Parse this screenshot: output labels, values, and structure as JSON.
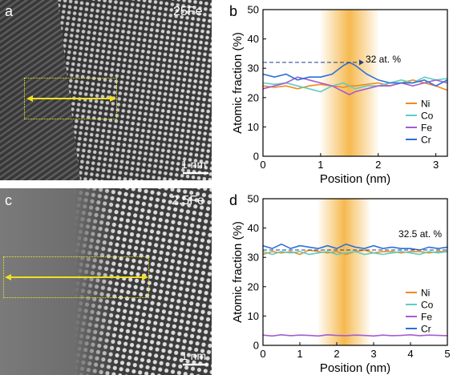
{
  "panels": {
    "a": {
      "letter": "a",
      "sample": "25Fe",
      "scalebar": "1 nm"
    },
    "b": {
      "letter": "b"
    },
    "c": {
      "letter": "c",
      "sample": "2.5Fe",
      "scalebar": "1 nm"
    },
    "d": {
      "letter": "d"
    }
  },
  "colors": {
    "Ni": "#f28a1e",
    "Co": "#5ccfc0",
    "Fe": "#a45ccf",
    "Cr": "#2d6fd6",
    "highlight": "#f5b646",
    "frame": "#e8e82a",
    "arrow": "#f0e020"
  },
  "chart_data": [
    {
      "type": "line",
      "panel": "b",
      "xlabel": "Position (nm)",
      "ylabel": "Atomic fraction (%)",
      "xlim": [
        0,
        3.2
      ],
      "ylim": [
        0,
        50
      ],
      "xticks": [
        0,
        1,
        2,
        3
      ],
      "yticks": [
        0,
        10,
        20,
        30,
        40,
        50
      ],
      "highlight_range": [
        1.0,
        2.0
      ],
      "annotation": "32 at. %",
      "annotation_value": 32,
      "legend": "bottom-right",
      "series": [
        {
          "name": "Ni",
          "x": [
            0,
            0.2,
            0.4,
            0.6,
            0.8,
            1.0,
            1.2,
            1.4,
            1.5,
            1.6,
            1.8,
            2.0,
            2.2,
            2.4,
            2.6,
            2.8,
            3.0,
            3.2
          ],
          "values": [
            24,
            23.5,
            24,
            23,
            24,
            24.5,
            24,
            23.5,
            24,
            24,
            24.5,
            25,
            24,
            25,
            26,
            25,
            24,
            22.5
          ]
        },
        {
          "name": "Co",
          "x": [
            0,
            0.2,
            0.4,
            0.6,
            0.8,
            1.0,
            1.2,
            1.4,
            1.5,
            1.6,
            1.8,
            2.0,
            2.2,
            2.4,
            2.6,
            2.8,
            3.0,
            3.2
          ],
          "values": [
            25,
            24.5,
            25,
            24,
            23,
            22,
            24,
            25,
            24,
            23,
            24,
            24,
            25,
            26,
            25,
            27,
            26,
            26.5
          ]
        },
        {
          "name": "Fe",
          "x": [
            0,
            0.2,
            0.4,
            0.6,
            0.8,
            1.0,
            1.2,
            1.4,
            1.5,
            1.6,
            1.8,
            2.0,
            2.2,
            2.4,
            2.6,
            2.8,
            3.0,
            3.2
          ],
          "values": [
            23,
            24,
            25,
            27,
            26,
            25,
            24,
            22,
            21,
            22,
            23,
            24,
            24,
            25,
            24,
            25,
            26,
            25
          ]
        },
        {
          "name": "Cr",
          "x": [
            0,
            0.2,
            0.4,
            0.6,
            0.8,
            1.0,
            1.2,
            1.4,
            1.5,
            1.6,
            1.8,
            2.0,
            2.2,
            2.4,
            2.6,
            2.8,
            3.0,
            3.2
          ],
          "values": [
            28,
            27,
            28,
            26,
            27,
            27,
            28,
            31,
            32,
            31,
            28,
            26,
            25,
            25,
            25,
            26,
            24,
            26
          ]
        }
      ]
    },
    {
      "type": "line",
      "panel": "d",
      "xlabel": "Position (nm)",
      "ylabel": "Atomic fraction (%)",
      "xlim": [
        0,
        5
      ],
      "ylim": [
        0,
        50
      ],
      "xticks": [
        0,
        1,
        2,
        3,
        4,
        5
      ],
      "yticks": [
        0,
        10,
        20,
        30,
        40,
        50
      ],
      "highlight_range": [
        1.5,
        2.9
      ],
      "annotation": "32.5 at. %",
      "annotation_value": 32.5,
      "legend": "bottom-right",
      "series": [
        {
          "name": "Ni",
          "x": [
            0,
            0.25,
            0.5,
            0.75,
            1,
            1.25,
            1.5,
            1.75,
            2,
            2.25,
            2.5,
            2.75,
            3,
            3.25,
            3.5,
            3.75,
            4,
            4.25,
            4.5,
            4.75,
            5
          ],
          "values": [
            31,
            32,
            31.5,
            32,
            31,
            32.5,
            32,
            31.5,
            32,
            31,
            32,
            32.5,
            31.5,
            32,
            32,
            31.5,
            32,
            32,
            31.5,
            32,
            32
          ]
        },
        {
          "name": "Co",
          "x": [
            0,
            0.25,
            0.5,
            0.75,
            1,
            1.25,
            1.5,
            1.75,
            2,
            2.25,
            2.5,
            2.75,
            3,
            3.25,
            3.5,
            3.75,
            4,
            4.25,
            4.5,
            4.75,
            5
          ],
          "values": [
            32,
            31,
            32,
            31.5,
            32,
            31,
            31.5,
            32,
            31,
            31.5,
            32,
            31,
            31.5,
            31,
            31.5,
            32,
            31.5,
            31,
            32,
            31.5,
            32
          ]
        },
        {
          "name": "Fe",
          "x": [
            0,
            0.25,
            0.5,
            0.75,
            1,
            1.25,
            1.5,
            1.75,
            2,
            2.25,
            2.5,
            2.75,
            3,
            3.25,
            3.5,
            3.75,
            4,
            4.25,
            4.5,
            4.75,
            5
          ],
          "values": [
            3.5,
            3.2,
            3.6,
            3.3,
            3.5,
            3.4,
            3.2,
            3.6,
            3.4,
            3.3,
            3.5,
            3.4,
            3.2,
            3.5,
            3.3,
            3.4,
            3.6,
            3.3,
            3.5,
            3.4,
            3.3
          ]
        },
        {
          "name": "Cr",
          "x": [
            0,
            0.25,
            0.5,
            0.75,
            1,
            1.25,
            1.5,
            1.75,
            2,
            2.25,
            2.5,
            2.75,
            3,
            3.25,
            3.5,
            3.75,
            4,
            4.25,
            4.5,
            4.75,
            5
          ],
          "values": [
            34,
            33,
            34.5,
            33,
            34,
            33.5,
            33,
            34,
            33,
            34.5,
            33.5,
            33,
            34,
            33,
            33.5,
            33,
            33,
            32.5,
            33.5,
            33,
            33.5
          ]
        }
      ]
    }
  ]
}
